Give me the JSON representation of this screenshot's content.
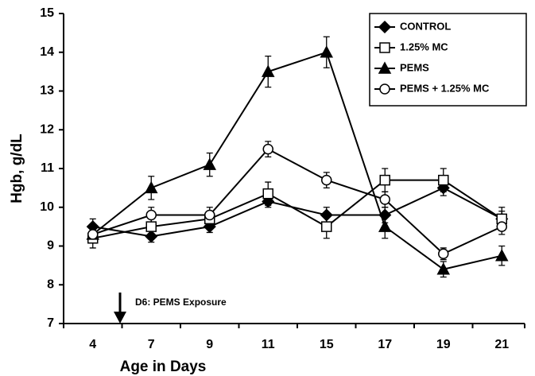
{
  "chart_data": {
    "type": "line",
    "x_label": "Age in Days",
    "y_label": "Hgb, g/dL",
    "annotation": "D6: PEMS Exposure",
    "categories": [
      "4",
      "7",
      "9",
      "11",
      "15",
      "17",
      "19",
      "21"
    ],
    "ylim": [
      7,
      15
    ],
    "yticks": [
      7,
      8,
      9,
      10,
      11,
      12,
      13,
      14,
      15
    ],
    "legend": "top-right",
    "series": [
      {
        "name": "CONTROL",
        "color": "#000000",
        "marker": "diamond",
        "values": [
          9.5,
          9.25,
          9.5,
          10.15,
          9.8,
          9.8,
          10.5,
          9.7
        ],
        "errors": [
          0.2,
          0.15,
          0.15,
          0.15,
          0.2,
          0.2,
          0.2,
          0.2
        ]
      },
      {
        "name": "1.25% MC",
        "color": "#000000",
        "marker": "square",
        "values": [
          9.2,
          9.5,
          9.7,
          10.35,
          9.5,
          10.7,
          10.7,
          9.7
        ],
        "errors": [
          0.25,
          0.2,
          0.2,
          0.3,
          0.3,
          0.3,
          0.3,
          0.3
        ]
      },
      {
        "name": "PEMS",
        "color": "#000000",
        "marker": "triangle",
        "values": [
          9.3,
          10.5,
          11.1,
          13.5,
          14.0,
          9.5,
          8.4,
          8.75
        ],
        "errors": [
          0.2,
          0.3,
          0.3,
          0.4,
          0.4,
          0.3,
          0.2,
          0.25
        ]
      },
      {
        "name": "PEMS + 1.25% MC",
        "color": "#000000",
        "marker": "circle",
        "values": [
          9.3,
          9.8,
          9.8,
          11.5,
          10.7,
          10.2,
          8.8,
          9.5
        ],
        "errors": [
          0.2,
          0.2,
          0.2,
          0.2,
          0.2,
          0.2,
          0.15,
          0.2
        ]
      }
    ]
  }
}
